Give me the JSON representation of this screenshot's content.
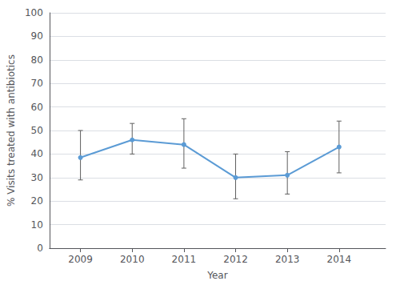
{
  "chart_data": {
    "type": "line",
    "x": [
      2009,
      2010,
      2011,
      2012,
      2013,
      2014
    ],
    "values": [
      38.5,
      46.0,
      44.0,
      30.0,
      31.0,
      43.0
    ],
    "err_low": [
      9.5,
      6.0,
      10.0,
      9.0,
      8.0,
      11.0
    ],
    "err_high": [
      11.5,
      7.0,
      11.0,
      10.0,
      10.0,
      11.0
    ],
    "color": "#5b9bd5",
    "marker": "circle",
    "line_style": "solid",
    "xlabel": "Year",
    "ylabel": "% Visits treated with antibiotics",
    "xlim": [
      2008.4,
      2014.9
    ],
    "xticks": [
      2009,
      2010,
      2011,
      2012,
      2013,
      2014
    ],
    "ylim": [
      0,
      100
    ],
    "yticks": [
      0,
      10,
      20,
      30,
      40,
      50,
      60,
      70,
      80,
      90,
      100
    ],
    "grid": true
  }
}
